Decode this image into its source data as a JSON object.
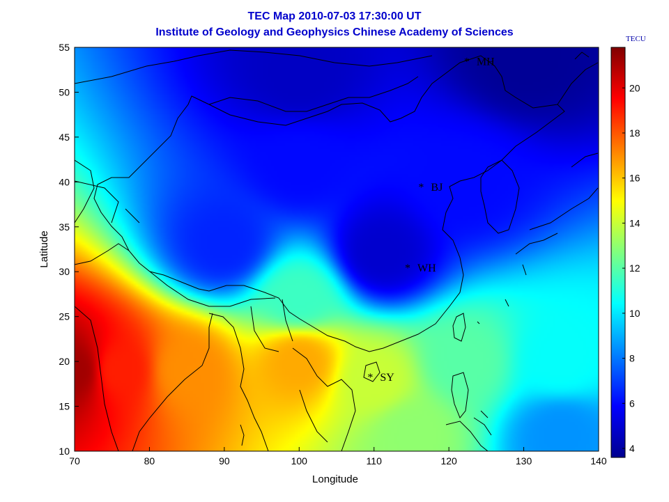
{
  "title": "TEC Map 2010-07-03 17:30:00 UT",
  "subtitle": "Institute of Geology and Geophysics Chinese Academy of Sciences",
  "chart_data": {
    "type": "heatmap",
    "xlabel": "Longitude",
    "ylabel": "Latitude",
    "xlim": [
      70,
      140
    ],
    "ylim": [
      10,
      55
    ],
    "xticks": [
      70,
      80,
      90,
      100,
      110,
      120,
      130,
      140
    ],
    "yticks": [
      10,
      15,
      20,
      25,
      30,
      35,
      40,
      45,
      50,
      55
    ],
    "colorbar": {
      "label": "TECU",
      "range": [
        3.6,
        21.8
      ],
      "ticks": [
        4,
        6,
        8,
        10,
        12,
        14,
        16,
        18,
        20
      ],
      "colormap": "jet"
    },
    "field_description": "TEC peaks near 21 TECU at 70E 19N, decreases northward; band 14-17 TECU across 80-115E at 15-23N; minimum ~4-5 TECU north of 45N and near 110E 32N",
    "field_points": [
      {
        "lon": 70,
        "lat": 19,
        "tec": 21.2
      },
      {
        "lon": 76,
        "lat": 19,
        "tec": 19.0
      },
      {
        "lon": 85,
        "lat": 19,
        "tec": 17.0
      },
      {
        "lon": 100,
        "lat": 20,
        "tec": 16.5
      },
      {
        "lon": 110,
        "lat": 18,
        "tec": 14.0
      },
      {
        "lon": 122,
        "lat": 20,
        "tec": 12.0
      },
      {
        "lon": 135,
        "lat": 20,
        "tec": 10.5
      },
      {
        "lon": 100,
        "lat": 27,
        "tec": 11.5
      },
      {
        "lon": 90,
        "lat": 33,
        "tec": 6.5
      },
      {
        "lon": 111,
        "lat": 32,
        "tec": 5.0
      },
      {
        "lon": 100,
        "lat": 42,
        "tec": 6.0
      },
      {
        "lon": 122,
        "lat": 40,
        "tec": 6.0
      },
      {
        "lon": 100,
        "lat": 52,
        "tec": 4.8
      },
      {
        "lon": 130,
        "lat": 54,
        "tec": 4.0
      },
      {
        "lon": 115,
        "lat": 12,
        "tec": 13.0
      },
      {
        "lon": 135,
        "lat": 12,
        "tec": 8.5
      }
    ],
    "stations": [
      {
        "name": "MH",
        "lon": 122.4,
        "lat": 53.5
      },
      {
        "name": "BJ",
        "lon": 116.3,
        "lat": 39.5
      },
      {
        "name": "WH",
        "lon": 114.5,
        "lat": 30.5
      },
      {
        "name": "SY",
        "lon": 109.5,
        "lat": 18.3
      }
    ]
  }
}
